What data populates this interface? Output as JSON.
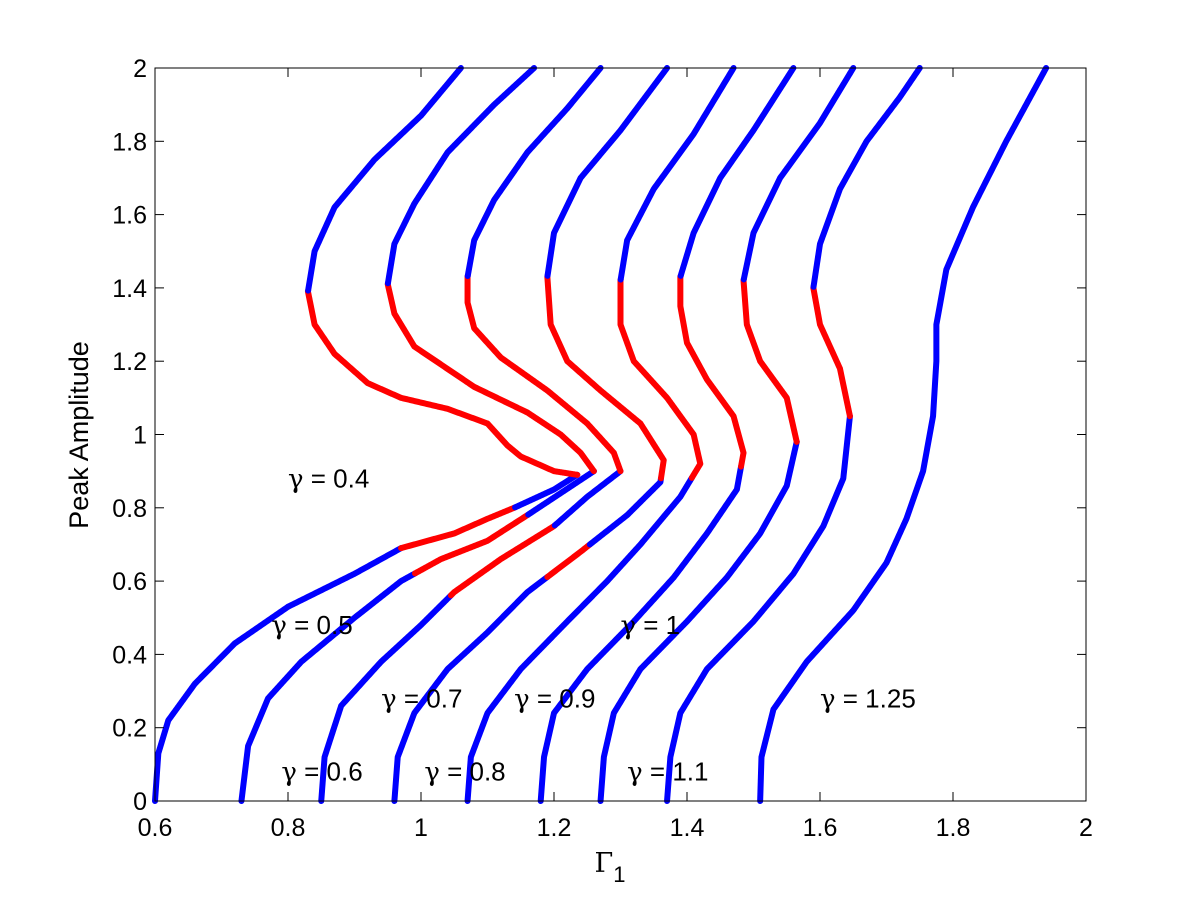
{
  "chart_data": {
    "type": "line",
    "title": "",
    "xlabel": "Γ",
    "xlabel_subscript": "1",
    "ylabel": "Peak Amplitude",
    "xlim": [
      0.6,
      2
    ],
    "ylim": [
      0,
      2
    ],
    "x_ticks": [
      "0.6",
      "0.8",
      "1",
      "1.2",
      "1.4",
      "1.6",
      "1.8",
      "2"
    ],
    "y_ticks": [
      "0",
      "0.2",
      "0.4",
      "0.6",
      "0.8",
      "1",
      "1.2",
      "1.4",
      "1.6",
      "1.8",
      "2"
    ],
    "grid": false,
    "colors": {
      "stable": "#0000ff",
      "unstable": "#ff0000"
    },
    "series": [
      {
        "points": [
          [
            0.6,
            0.0
          ],
          [
            0.605,
            0.13
          ],
          [
            0.62,
            0.22
          ],
          [
            0.66,
            0.32
          ],
          [
            0.72,
            0.43
          ],
          [
            0.8,
            0.53
          ],
          [
            0.9,
            0.62
          ],
          [
            0.97,
            0.69
          ],
          [
            1.05,
            0.73
          ],
          [
            1.1,
            0.77
          ],
          [
            1.14,
            0.8
          ],
          [
            1.2,
            0.85
          ],
          [
            1.235,
            0.89
          ],
          [
            1.2,
            0.9
          ],
          [
            1.15,
            0.94
          ],
          [
            1.13,
            0.97
          ],
          [
            1.1,
            1.03
          ],
          [
            1.04,
            1.07
          ],
          [
            0.97,
            1.1
          ],
          [
            0.92,
            1.14
          ],
          [
            0.87,
            1.22
          ],
          [
            0.84,
            1.3
          ],
          [
            0.83,
            1.39
          ],
          [
            0.84,
            1.5
          ],
          [
            0.87,
            1.62
          ],
          [
            0.93,
            1.75
          ],
          [
            1.0,
            1.87
          ],
          [
            1.06,
            2.0
          ]
        ],
        "unstable_ranges": [
          [
            0.69,
            0.8
          ],
          [
            0.89,
            1.39
          ]
        ]
      },
      {
        "points": [
          [
            0.73,
            0.0
          ],
          [
            0.74,
            0.15
          ],
          [
            0.77,
            0.28
          ],
          [
            0.82,
            0.38
          ],
          [
            0.9,
            0.5
          ],
          [
            0.97,
            0.6
          ],
          [
            1.03,
            0.66
          ],
          [
            1.1,
            0.71
          ],
          [
            1.16,
            0.78
          ],
          [
            1.21,
            0.84
          ],
          [
            1.26,
            0.9
          ],
          [
            1.24,
            0.95
          ],
          [
            1.21,
            1.0
          ],
          [
            1.16,
            1.06
          ],
          [
            1.08,
            1.13
          ],
          [
            0.99,
            1.24
          ],
          [
            0.96,
            1.33
          ],
          [
            0.95,
            1.41
          ],
          [
            0.96,
            1.52
          ],
          [
            0.99,
            1.63
          ],
          [
            1.04,
            1.77
          ],
          [
            1.11,
            1.9
          ],
          [
            1.17,
            2.0
          ]
        ],
        "unstable_ranges": [
          [
            0.62,
            0.78
          ],
          [
            0.9,
            1.41
          ]
        ]
      },
      {
        "points": [
          [
            0.85,
            0.0
          ],
          [
            0.855,
            0.12
          ],
          [
            0.88,
            0.26
          ],
          [
            0.94,
            0.38
          ],
          [
            1.0,
            0.48
          ],
          [
            1.05,
            0.57
          ],
          [
            1.12,
            0.66
          ],
          [
            1.2,
            0.75
          ],
          [
            1.25,
            0.83
          ],
          [
            1.3,
            0.9
          ],
          [
            1.29,
            0.95
          ],
          [
            1.25,
            1.03
          ],
          [
            1.19,
            1.12
          ],
          [
            1.12,
            1.21
          ],
          [
            1.08,
            1.29
          ],
          [
            1.07,
            1.36
          ],
          [
            1.07,
            1.43
          ],
          [
            1.08,
            1.53
          ],
          [
            1.11,
            1.64
          ],
          [
            1.16,
            1.77
          ],
          [
            1.22,
            1.89
          ],
          [
            1.27,
            2.0
          ]
        ],
        "unstable_ranges": [
          [
            0.56,
            0.75
          ],
          [
            0.9,
            1.43
          ]
        ]
      },
      {
        "points": [
          [
            0.96,
            0.0
          ],
          [
            0.965,
            0.12
          ],
          [
            0.99,
            0.24
          ],
          [
            1.04,
            0.36
          ],
          [
            1.1,
            0.46
          ],
          [
            1.16,
            0.57
          ],
          [
            1.24,
            0.68
          ],
          [
            1.31,
            0.78
          ],
          [
            1.36,
            0.87
          ],
          [
            1.365,
            0.93
          ],
          [
            1.33,
            1.03
          ],
          [
            1.27,
            1.12
          ],
          [
            1.22,
            1.2
          ],
          [
            1.195,
            1.3
          ],
          [
            1.19,
            1.43
          ],
          [
            1.2,
            1.55
          ],
          [
            1.24,
            1.7
          ],
          [
            1.3,
            1.83
          ],
          [
            1.37,
            2.0
          ]
        ],
        "unstable_ranges": [
          [
            0.61,
            0.7
          ],
          [
            0.88,
            1.43
          ]
        ]
      },
      {
        "points": [
          [
            1.07,
            0.0
          ],
          [
            1.075,
            0.12
          ],
          [
            1.1,
            0.24
          ],
          [
            1.15,
            0.36
          ],
          [
            1.22,
            0.49
          ],
          [
            1.28,
            0.6
          ],
          [
            1.33,
            0.7
          ],
          [
            1.39,
            0.83
          ],
          [
            1.42,
            0.92
          ],
          [
            1.41,
            1.0
          ],
          [
            1.37,
            1.1
          ],
          [
            1.32,
            1.2
          ],
          [
            1.3,
            1.3
          ],
          [
            1.3,
            1.42
          ],
          [
            1.31,
            1.53
          ],
          [
            1.35,
            1.67
          ],
          [
            1.41,
            1.82
          ],
          [
            1.47,
            2.0
          ]
        ],
        "unstable_ranges": [
          [
            0.88,
            1.42
          ]
        ]
      },
      {
        "points": [
          [
            1.18,
            0.0
          ],
          [
            1.185,
            0.12
          ],
          [
            1.2,
            0.24
          ],
          [
            1.25,
            0.36
          ],
          [
            1.32,
            0.49
          ],
          [
            1.38,
            0.61
          ],
          [
            1.43,
            0.73
          ],
          [
            1.475,
            0.85
          ],
          [
            1.485,
            0.95
          ],
          [
            1.47,
            1.05
          ],
          [
            1.43,
            1.15
          ],
          [
            1.4,
            1.25
          ],
          [
            1.39,
            1.35
          ],
          [
            1.39,
            1.43
          ],
          [
            1.41,
            1.55
          ],
          [
            1.45,
            1.7
          ],
          [
            1.5,
            1.83
          ],
          [
            1.56,
            2.0
          ]
        ],
        "unstable_ranges": [
          [
            0.91,
            1.43
          ]
        ]
      },
      {
        "points": [
          [
            1.27,
            0.0
          ],
          [
            1.275,
            0.12
          ],
          [
            1.29,
            0.24
          ],
          [
            1.33,
            0.36
          ],
          [
            1.4,
            0.49
          ],
          [
            1.46,
            0.61
          ],
          [
            1.51,
            0.73
          ],
          [
            1.55,
            0.86
          ],
          [
            1.565,
            0.98
          ],
          [
            1.55,
            1.1
          ],
          [
            1.51,
            1.2
          ],
          [
            1.49,
            1.3
          ],
          [
            1.485,
            1.42
          ],
          [
            1.5,
            1.55
          ],
          [
            1.54,
            1.7
          ],
          [
            1.6,
            1.85
          ],
          [
            1.65,
            2.0
          ]
        ],
        "unstable_ranges": [
          [
            0.98,
            1.42
          ]
        ]
      },
      {
        "points": [
          [
            1.37,
            0.0
          ],
          [
            1.375,
            0.12
          ],
          [
            1.39,
            0.24
          ],
          [
            1.43,
            0.36
          ],
          [
            1.5,
            0.49
          ],
          [
            1.56,
            0.62
          ],
          [
            1.605,
            0.75
          ],
          [
            1.635,
            0.88
          ],
          [
            1.645,
            1.05
          ],
          [
            1.63,
            1.18
          ],
          [
            1.6,
            1.3
          ],
          [
            1.59,
            1.4
          ],
          [
            1.6,
            1.52
          ],
          [
            1.63,
            1.67
          ],
          [
            1.67,
            1.8
          ],
          [
            1.72,
            1.92
          ],
          [
            1.75,
            2.0
          ]
        ],
        "unstable_ranges": [
          [
            1.05,
            1.4
          ]
        ]
      },
      {
        "points": [
          [
            1.51,
            0.0
          ],
          [
            1.512,
            0.12
          ],
          [
            1.53,
            0.25
          ],
          [
            1.58,
            0.38
          ],
          [
            1.65,
            0.52
          ],
          [
            1.7,
            0.65
          ],
          [
            1.73,
            0.77
          ],
          [
            1.755,
            0.9
          ],
          [
            1.77,
            1.05
          ],
          [
            1.775,
            1.2
          ],
          [
            1.775,
            1.3
          ],
          [
            1.79,
            1.45
          ],
          [
            1.83,
            1.62
          ],
          [
            1.88,
            1.8
          ],
          [
            1.94,
            2.0
          ]
        ],
        "unstable_ranges": []
      }
    ],
    "annotations": [
      {
        "symbol": "γ",
        "text": " = 0.4",
        "x": 0.8,
        "y": 0.88
      },
      {
        "symbol": "γ",
        "text": " = 0.5",
        "x": 0.775,
        "y": 0.48
      },
      {
        "symbol": "γ",
        "text": " = 0.6",
        "x": 0.79,
        "y": 0.08
      },
      {
        "symbol": "γ",
        "text": " = 0.7",
        "x": 0.94,
        "y": 0.28
      },
      {
        "symbol": "γ",
        "text": " = 0.8",
        "x": 1.005,
        "y": 0.08
      },
      {
        "symbol": "γ",
        "text": " = 0.9",
        "x": 1.14,
        "y": 0.28
      },
      {
        "symbol": "γ",
        "text": " = 1",
        "x": 1.3,
        "y": 0.48
      },
      {
        "symbol": "γ",
        "text": " = 1.1",
        "x": 1.31,
        "y": 0.08
      },
      {
        "symbol": "γ",
        "text": " = 1.25",
        "x": 1.6,
        "y": 0.28
      }
    ]
  }
}
